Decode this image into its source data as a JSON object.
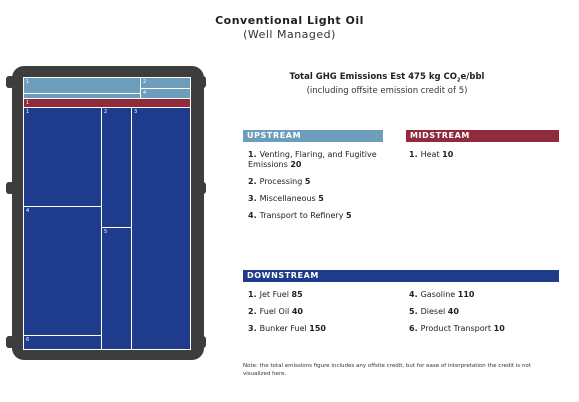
{
  "title": "Conventional Light Oil",
  "subtitle": "(Well Managed)",
  "summary": {
    "line1_prefix": "Total GHG Emissions Est 475 kg CO",
    "line1_sub": "2",
    "line1_suffix": "e/bbl",
    "line2": "(including offsite emission credit of 5)"
  },
  "colors": {
    "upstream": "#6c9dbb",
    "midstream": "#8f2b3d",
    "downstream": "#1f3c8c",
    "barrel": "#3d3d3d"
  },
  "upstream": {
    "header": "UPSTREAM",
    "items": [
      {
        "num": "1.",
        "label": "Venting, Flaring, and Fugitive Emissions",
        "value": "20"
      },
      {
        "num": "2.",
        "label": "Processing",
        "value": "5"
      },
      {
        "num": "3.",
        "label": "Miscellaneous",
        "value": "5"
      },
      {
        "num": "4.",
        "label": "Transport to Refinery",
        "value": "5"
      }
    ]
  },
  "midstream": {
    "header": "MIDSTREAM",
    "items": [
      {
        "num": "1.",
        "label": "Heat",
        "value": "10"
      }
    ]
  },
  "downstream": {
    "header": "DOWNSTREAM",
    "items_left": [
      {
        "num": "1.",
        "label": "Jet Fuel",
        "value": "85"
      },
      {
        "num": "2.",
        "label": "Fuel Oil",
        "value": "40"
      },
      {
        "num": "3.",
        "label": "Bunker Fuel",
        "value": "150"
      }
    ],
    "items_right": [
      {
        "num": "4.",
        "label": "Gasoline",
        "value": "110"
      },
      {
        "num": "5.",
        "label": "Diesel",
        "value": "40"
      },
      {
        "num": "6.",
        "label": "Product Transport",
        "value": "10"
      }
    ]
  },
  "treemap_labels": {
    "up1": "1",
    "up2": "2",
    "up3": "3",
    "up4": "4",
    "mid1": "1",
    "down1": "1",
    "down2": "2",
    "down3": "3",
    "down4": "4",
    "down5": "5",
    "down6": "6"
  },
  "note": "Note: the total emissions figure includes any offsite credit, but for ease of interpretation the credit is not visualized here."
}
